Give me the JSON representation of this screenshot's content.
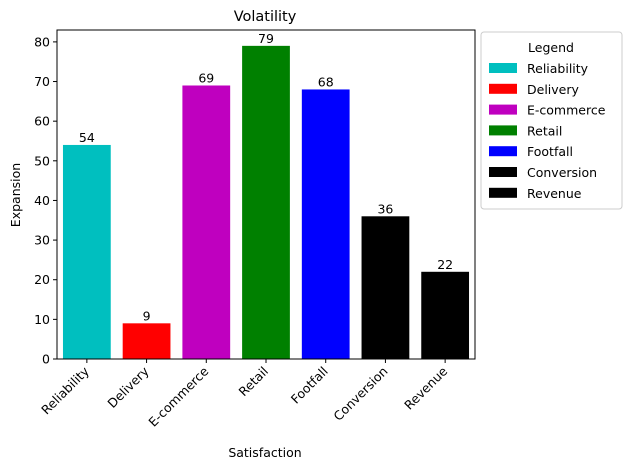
{
  "chart_data": {
    "type": "bar",
    "title": "Volatility",
    "xlabel": "Satisfaction",
    "ylabel": "Expansion",
    "categories": [
      "Reliability",
      "Delivery",
      "E-commerce",
      "Retail",
      "Footfall",
      "Conversion",
      "Revenue"
    ],
    "values": [
      54,
      9,
      69,
      79,
      68,
      36,
      22
    ],
    "colors": [
      "#00bfbf",
      "#ff0000",
      "#bf00bf",
      "#008000",
      "#0000ff",
      "#000000",
      "#000000"
    ],
    "ylim": [
      0,
      83
    ],
    "yticks": [
      0,
      10,
      20,
      30,
      40,
      50,
      60,
      70,
      80
    ],
    "grid": false,
    "legend": {
      "title": "Legend",
      "placement": "outside-right-top",
      "entries": [
        "Reliability",
        "Delivery",
        "E-commerce",
        "Retail",
        "Footfall",
        "Conversion",
        "Revenue"
      ]
    }
  }
}
